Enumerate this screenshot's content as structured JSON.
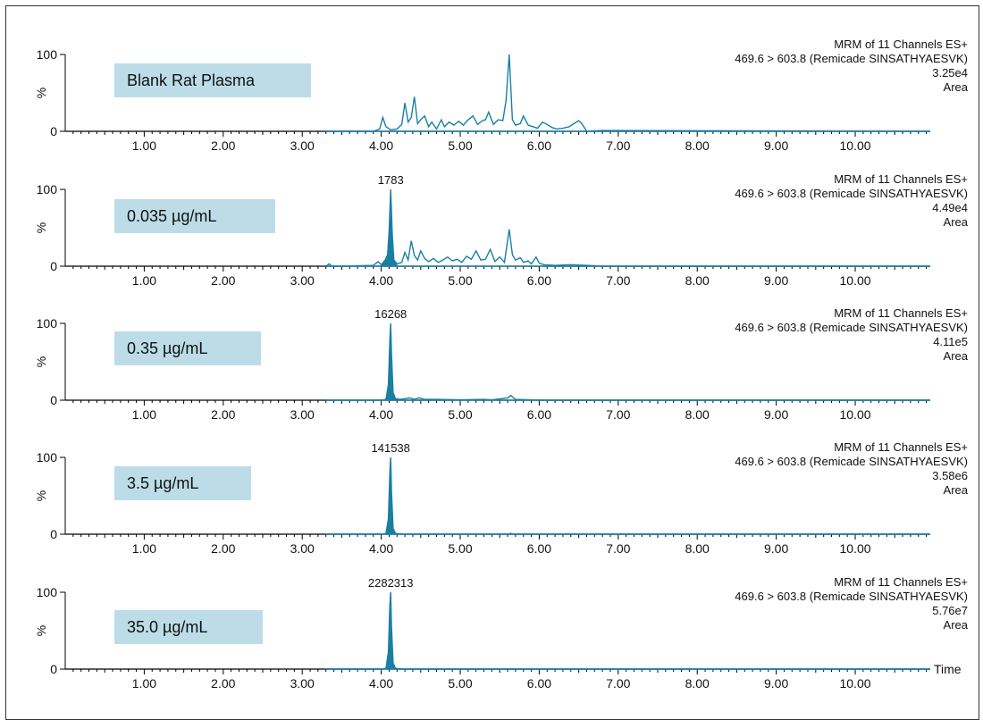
{
  "colors": {
    "trace": "#1a7fa3",
    "label_box": "#bcdde8",
    "axis": "#000000"
  },
  "chart_data": [
    {
      "type": "line",
      "sample_label": "Blank Rat Plasma",
      "header": [
        "MRM of 11 Channels ES+",
        "469.6 > 603.8 (Remicade SINSATHYAESVK)",
        "3.25e4",
        "Area"
      ],
      "peak_label": "",
      "ylabel": "%",
      "xlabel": "",
      "yticks": [
        0,
        100
      ],
      "xticks": [
        "1.00",
        "2.00",
        "3.00",
        "4.00",
        "5.00",
        "6.00",
        "7.00",
        "8.00",
        "9.00",
        "10.00"
      ],
      "xlim": [
        0,
        10.95
      ],
      "ylim": [
        0,
        100
      ],
      "series": [
        {
          "x": [
            3.3,
            3.9,
            3.98,
            4.02,
            4.06,
            4.12,
            4.2,
            4.26,
            4.3,
            4.34,
            4.38,
            4.42,
            4.46,
            4.5,
            4.55,
            4.6,
            4.64,
            4.7,
            4.76,
            4.8,
            4.86,
            4.92,
            4.98,
            5.04,
            5.1,
            5.16,
            5.22,
            5.28,
            5.32,
            5.36,
            5.42,
            5.48,
            5.54,
            5.58,
            5.62,
            5.66,
            5.7,
            5.76,
            5.8,
            5.86,
            5.92,
            5.98,
            6.04,
            6.1,
            6.16,
            6.22,
            6.3,
            6.38,
            6.44,
            6.5,
            6.54,
            6.6,
            6.8,
            10.95
          ],
          "y": [
            0,
            0,
            3,
            18,
            6,
            2,
            3,
            9,
            37,
            12,
            18,
            45,
            10,
            15,
            20,
            6,
            12,
            3,
            15,
            6,
            12,
            8,
            13,
            8,
            15,
            20,
            9,
            14,
            15,
            25,
            9,
            15,
            14,
            40,
            100,
            15,
            8,
            10,
            20,
            8,
            6,
            4,
            12,
            9,
            5,
            3,
            4,
            6,
            10,
            14,
            10,
            0,
            1,
            0
          ]
        }
      ]
    },
    {
      "type": "line",
      "sample_label": "0.035 µg/mL",
      "header": [
        "MRM of 11 Channels ES+",
        "469.6 > 603.8 (Remicade SINSATHYAESVK)",
        "4.49e4",
        "Area"
      ],
      "peak_label": "1783",
      "peak_x": 4.12,
      "ylabel": "%",
      "xlabel": "",
      "yticks": [
        0,
        100
      ],
      "xticks": [
        "1.00",
        "2.00",
        "3.00",
        "4.00",
        "5.00",
        "6.00",
        "7.00",
        "8.00",
        "9.00",
        "10.00"
      ],
      "xlim": [
        0,
        10.95
      ],
      "ylim": [
        0,
        100
      ],
      "series": [
        {
          "x": [
            3.3,
            3.34,
            3.38,
            3.5,
            3.9,
            3.96,
            4.0,
            4.05,
            4.08,
            4.1,
            4.12,
            4.14,
            4.16,
            4.2,
            4.26,
            4.3,
            4.34,
            4.38,
            4.42,
            4.46,
            4.5,
            4.55,
            4.6,
            4.66,
            4.72,
            4.78,
            4.84,
            4.9,
            4.96,
            5.02,
            5.08,
            5.14,
            5.2,
            5.26,
            5.32,
            5.38,
            5.44,
            5.5,
            5.56,
            5.62,
            5.66,
            5.7,
            5.76,
            5.8,
            5.86,
            5.9,
            5.96,
            6.0,
            6.06,
            6.2,
            6.4,
            6.6,
            6.8,
            10.95
          ],
          "y": [
            0,
            3,
            0,
            0,
            1,
            6,
            2,
            8,
            15,
            45,
            100,
            40,
            8,
            3,
            5,
            18,
            8,
            33,
            14,
            8,
            20,
            10,
            6,
            10,
            5,
            8,
            12,
            7,
            9,
            5,
            13,
            9,
            20,
            8,
            9,
            22,
            6,
            12,
            5,
            48,
            15,
            8,
            11,
            5,
            7,
            3,
            12,
            4,
            2,
            1,
            2,
            1,
            0,
            0
          ]
        }
      ]
    },
    {
      "type": "line",
      "sample_label": "0.35 µg/mL",
      "header": [
        "MRM of 11 Channels ES+",
        "469.6 > 603.8 (Remicade SINSATHYAESVK)",
        "4.11e5",
        "Area"
      ],
      "peak_label": "16268",
      "peak_x": 4.12,
      "ylabel": "%",
      "xlabel": "",
      "yticks": [
        0,
        100
      ],
      "xticks": [
        "1.00",
        "2.00",
        "3.00",
        "4.00",
        "5.00",
        "6.00",
        "7.00",
        "8.00",
        "9.00",
        "10.00"
      ],
      "xlim": [
        0,
        10.95
      ],
      "ylim": [
        0,
        100
      ],
      "series": [
        {
          "x": [
            3.3,
            4.0,
            4.06,
            4.09,
            4.11,
            4.12,
            4.13,
            4.15,
            4.18,
            4.24,
            4.3,
            4.36,
            4.42,
            4.48,
            4.55,
            4.7,
            5.0,
            5.3,
            5.4,
            5.6,
            5.64,
            5.7,
            6.0,
            10.95
          ],
          "y": [
            0,
            0,
            1,
            20,
            80,
            100,
            60,
            10,
            2,
            1,
            2,
            3,
            1,
            3,
            1,
            1,
            0.5,
            1,
            0.5,
            3,
            6,
            1,
            0,
            0
          ]
        }
      ]
    },
    {
      "type": "line",
      "sample_label": "3.5 µg/mL",
      "header": [
        "MRM of 11 Channels ES+",
        "469.6 > 603.8 (Remicade SINSATHYAESVK)",
        "3.58e6",
        "Area"
      ],
      "peak_label": "141538",
      "peak_x": 4.12,
      "ylabel": "%",
      "xlabel": "",
      "yticks": [
        0,
        100
      ],
      "xticks": [
        "1.00",
        "2.00",
        "3.00",
        "4.00",
        "5.00",
        "6.00",
        "7.00",
        "8.00",
        "9.00",
        "10.00"
      ],
      "xlim": [
        0,
        10.95
      ],
      "ylim": [
        0,
        100
      ],
      "series": [
        {
          "x": [
            3.3,
            4.02,
            4.06,
            4.09,
            4.11,
            4.12,
            4.13,
            4.15,
            4.18,
            4.25,
            5.6,
            5.64,
            5.68,
            10.95
          ],
          "y": [
            0,
            0,
            1,
            20,
            82,
            100,
            55,
            8,
            1,
            0,
            0,
            1,
            0,
            0
          ]
        }
      ]
    },
    {
      "type": "line",
      "sample_label": "35.0 µg/mL",
      "header": [
        "MRM of 11 Channels ES+",
        "469.6 > 603.8 (Remicade SINSATHYAESVK)",
        "5.76e7",
        "Area"
      ],
      "peak_label": "2282313",
      "peak_x": 4.12,
      "ylabel": "%",
      "xlabel": "Time",
      "yticks": [
        0,
        100
      ],
      "xticks": [
        "1.00",
        "2.00",
        "3.00",
        "4.00",
        "5.00",
        "6.00",
        "7.00",
        "8.00",
        "9.00",
        "10.00"
      ],
      "xlim": [
        0,
        10.95
      ],
      "ylim": [
        0,
        100
      ],
      "series": [
        {
          "x": [
            3.3,
            4.02,
            4.06,
            4.09,
            4.11,
            4.12,
            4.13,
            4.15,
            4.18,
            4.25,
            10.95
          ],
          "y": [
            0,
            0,
            1,
            22,
            85,
            100,
            55,
            8,
            1,
            0,
            0
          ]
        }
      ]
    }
  ]
}
